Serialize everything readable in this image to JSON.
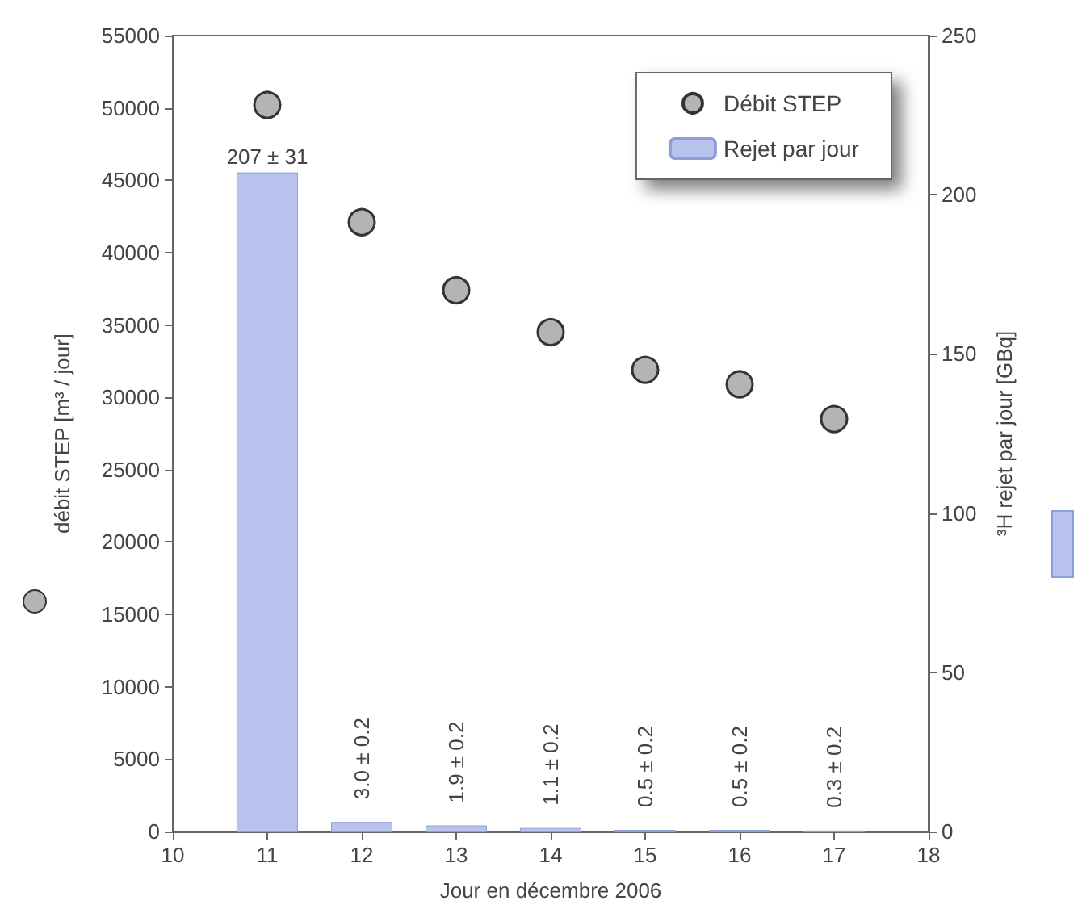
{
  "chart_data": {
    "type": "bar",
    "xlabel": "Jour en décembre 2006",
    "ylabel": "débit STEP [m³ / jour]",
    "y2label": "³H rejet par jour [GBq]",
    "x": [
      11,
      12,
      13,
      14,
      15,
      16,
      17
    ],
    "series": [
      {
        "name": "Rejet par jour",
        "axis": "y2",
        "color": "#b8c4ee",
        "values": [
          207,
          3.0,
          1.9,
          1.1,
          0.5,
          0.5,
          0.3
        ],
        "value_labels": [
          "207 ± 31",
          "3.0 ± 0.2",
          "1.9 ± 0.2",
          "1.1 ± 0.2",
          "0.5 ± 0.2",
          "0.5 ± 0.2",
          "0.3 ± 0.2"
        ]
      },
      {
        "name": "Débit STEP",
        "type": "scatter",
        "color": "#b4b4b4",
        "marker": "circle",
        "values": [
          50200,
          42100,
          37400,
          34500,
          31900,
          30900,
          28500
        ]
      }
    ],
    "xlim": [
      10,
      18
    ],
    "xticks": [
      10,
      11,
      12,
      13,
      14,
      15,
      16,
      17,
      18
    ],
    "ylim": [
      0,
      55000
    ],
    "yticks": [
      0,
      5000,
      10000,
      15000,
      20000,
      25000,
      30000,
      35000,
      40000,
      45000,
      50000,
      55000
    ],
    "y2lim": [
      0,
      250
    ],
    "y2ticks": [
      0,
      50,
      100,
      150,
      200,
      250
    ],
    "grid": false,
    "legend": "top right"
  }
}
